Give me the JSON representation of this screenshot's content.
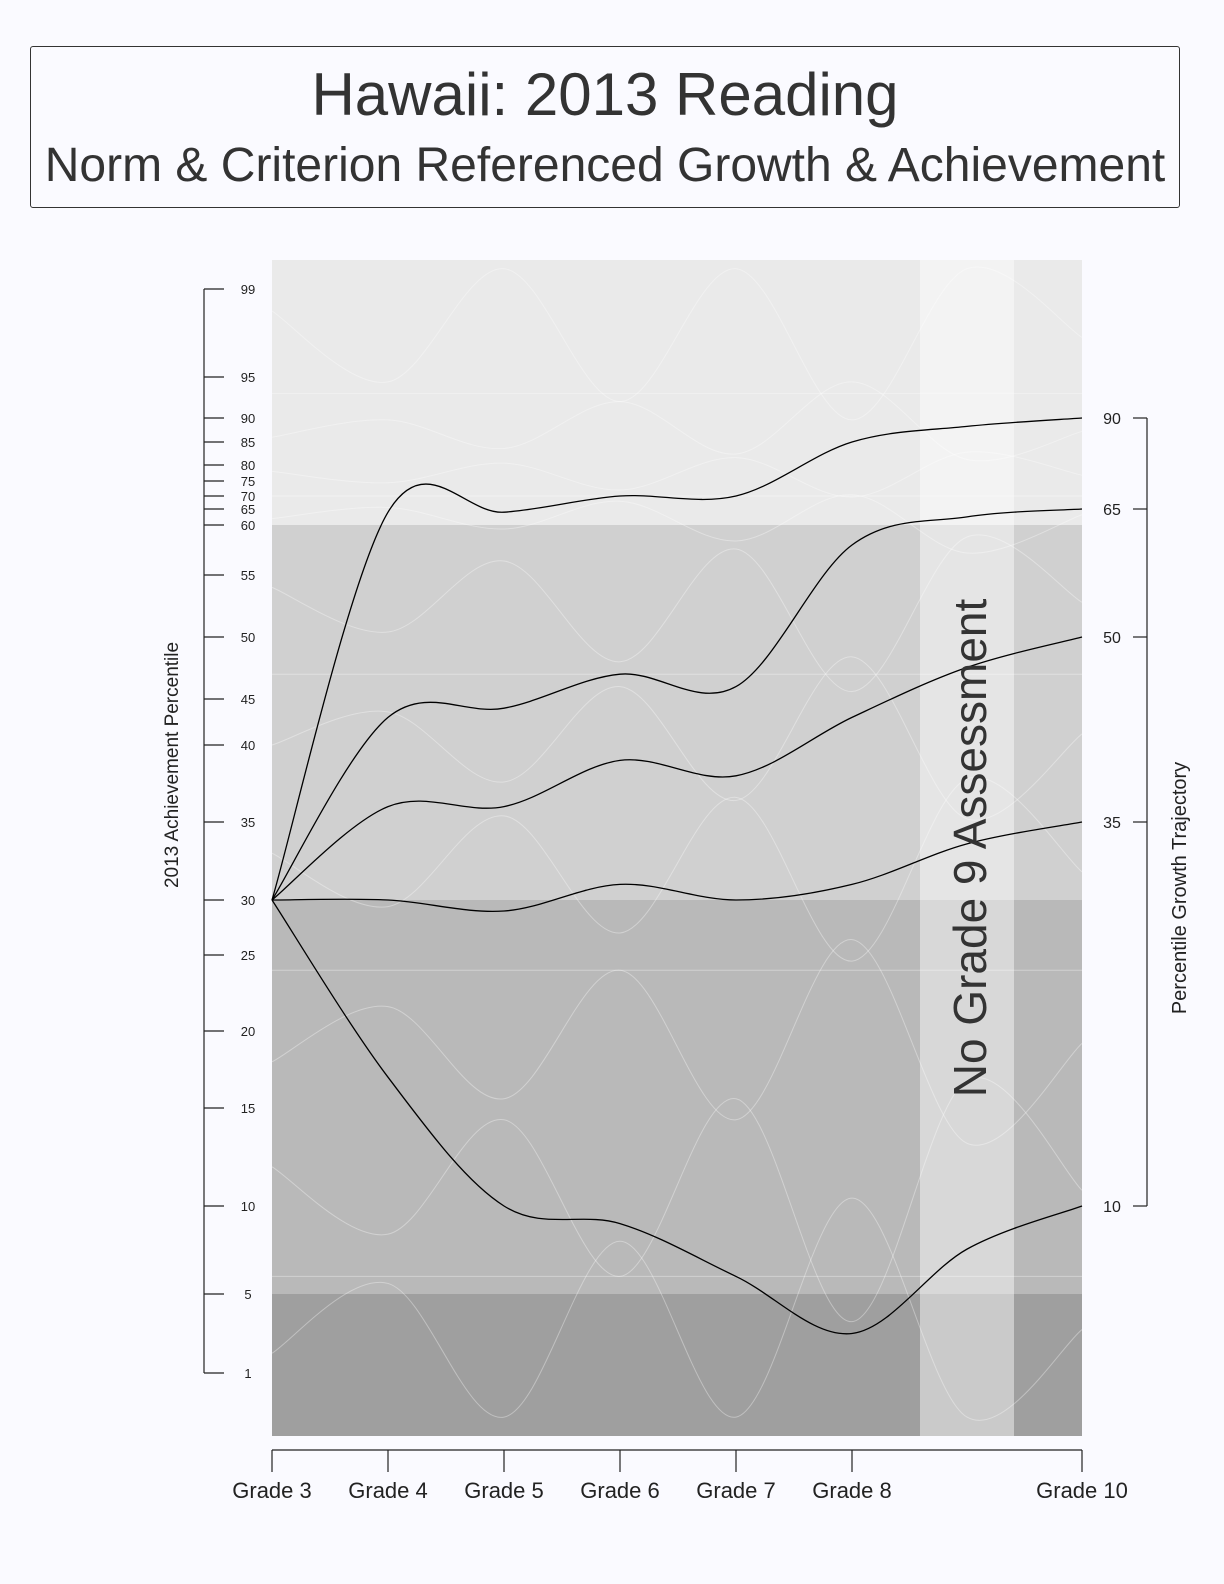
{
  "header": {
    "title": "Hawaii: 2013 Reading",
    "subtitle": "Norm & Criterion Referenced Growth & Achievement"
  },
  "colors": {
    "background": "#fafaff",
    "band_top": "#eaeaea",
    "band_upper_mid": "#d0d0d0",
    "band_lower_mid": "#b9b9b9",
    "band_bottom": "#9f9f9f",
    "trajectory_line": "#000000",
    "percentile_line": "#ffffff"
  },
  "chart_data": {
    "type": "line",
    "x": [
      "Grade 3",
      "Grade 4",
      "Grade 5",
      "Grade 6",
      "Grade 7",
      "Grade 8",
      "Grade 9",
      "Grade 10"
    ],
    "x_tick_labels": [
      "Grade 3",
      "Grade 4",
      "Grade 5",
      "Grade 6",
      "Grade 7",
      "Grade 8",
      "Grade 10"
    ],
    "ylabel_left": "2013 Achievement Percentile",
    "ylabel_right": "Percentile Growth Trajectory",
    "left_ticks": [
      1,
      5,
      10,
      15,
      20,
      25,
      30,
      35,
      40,
      45,
      50,
      55,
      60,
      65,
      70,
      75,
      80,
      85,
      90,
      95,
      99
    ],
    "right_ticks": [
      10,
      35,
      50,
      65,
      90
    ],
    "gap_annotation": "No Grade 9 Assessment",
    "starting_achievement_percentile": 30,
    "trajectories": [
      {
        "name": "90",
        "values": [
          30,
          64,
          64,
          70,
          70,
          85,
          null,
          90
        ]
      },
      {
        "name": "65",
        "values": [
          30,
          43,
          44,
          47,
          46,
          58,
          null,
          65
        ]
      },
      {
        "name": "50",
        "values": [
          30,
          36,
          36,
          39,
          38,
          43,
          null,
          50
        ]
      },
      {
        "name": "35",
        "values": [
          30,
          30,
          29,
          31,
          30,
          31,
          null,
          35
        ]
      },
      {
        "name": "10",
        "values": [
          30,
          17,
          10,
          9,
          6,
          3,
          null,
          10
        ]
      }
    ],
    "achievement_levels": [
      {
        "from": 60,
        "to": 100
      },
      {
        "from": 30,
        "to": 60
      },
      {
        "from": 5,
        "to": 30
      },
      {
        "from": 0,
        "to": 5
      }
    ]
  }
}
